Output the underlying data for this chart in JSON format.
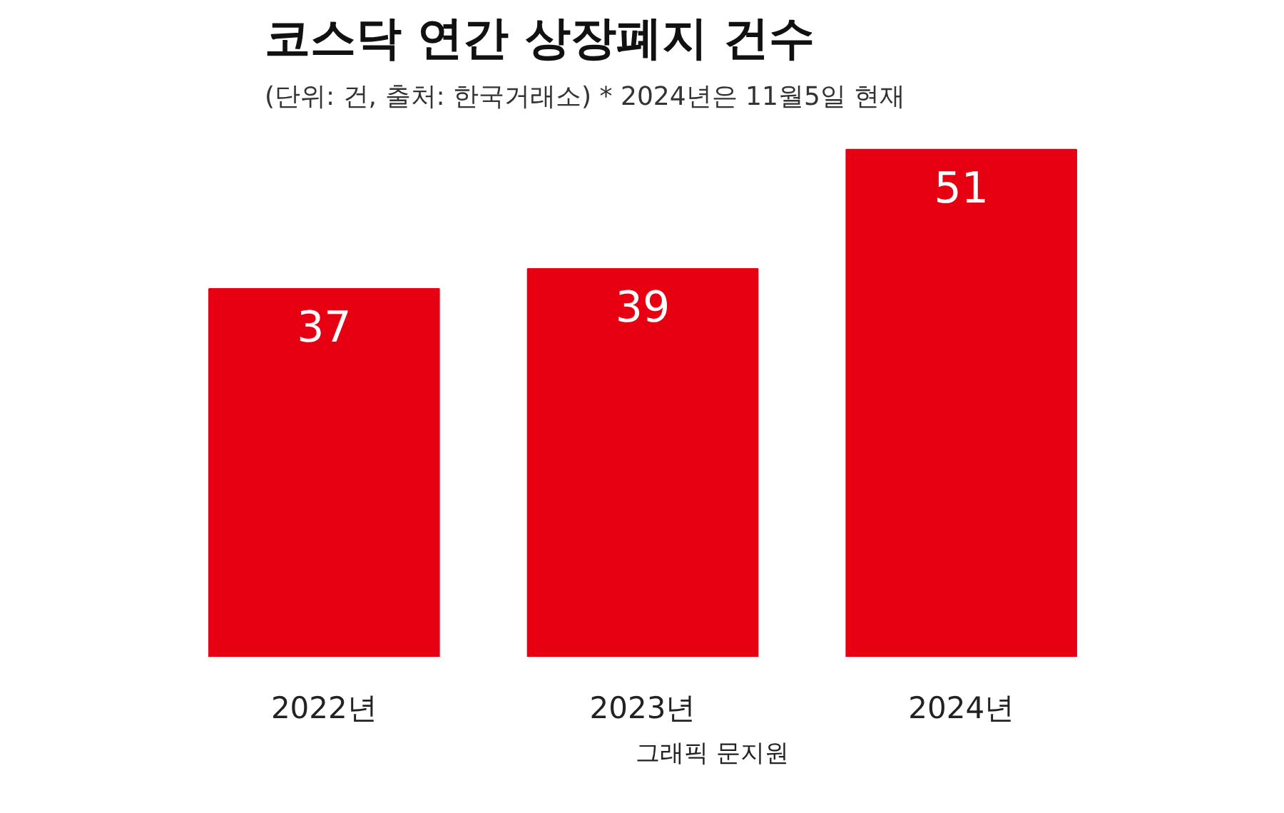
{
  "chart_data": {
    "type": "bar",
    "title": "코스닥 연간 상장폐지 건수",
    "subtitle": "(단위: 건, 출처: 한국거래소)  * 2024년은 11월5일 현재",
    "categories": [
      "2022년",
      "2023년",
      "2024년"
    ],
    "values": [
      37,
      39,
      51
    ],
    "color": "#e60012",
    "data_labels": true,
    "grid": false,
    "annotations": [
      "그래픽 문지원"
    ]
  }
}
